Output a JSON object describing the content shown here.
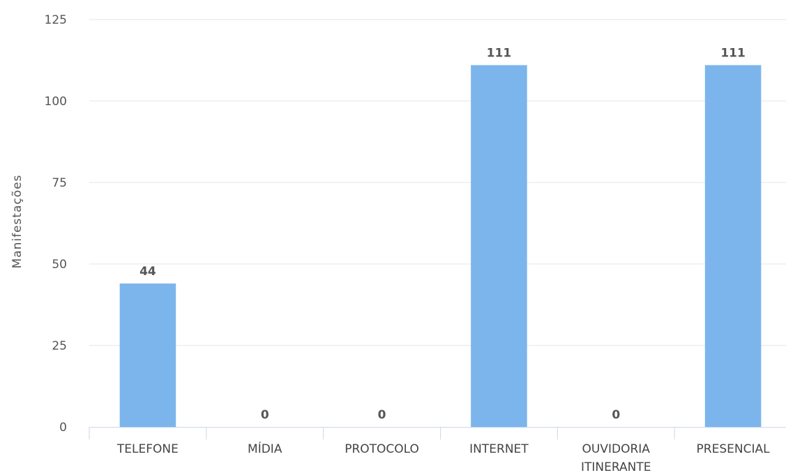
{
  "chart_data": {
    "type": "bar",
    "ylabel": "Manifestações",
    "xlabel": "",
    "categories": [
      [
        "TELEFONE"
      ],
      [
        "MÍDIA"
      ],
      [
        "PROTOCOLO"
      ],
      [
        "INTERNET"
      ],
      [
        "OUVIDORIA",
        "ITINERANTE"
      ],
      [
        "PRESENCIAL"
      ]
    ],
    "series": [
      {
        "values": [
          44,
          0,
          0,
          111,
          0,
          111
        ]
      }
    ],
    "ylim": [
      0,
      125
    ],
    "yticks": [
      "0",
      "25",
      "50",
      "75",
      "100",
      "125"
    ],
    "data_labels": [
      "44",
      "0",
      "0",
      "111",
      "0",
      "111"
    ],
    "grid": true,
    "legend": "none",
    "colors": {
      "bar": "#7cb5ec",
      "grid": "#e6e6e6",
      "axis": "#ccd6eb"
    }
  }
}
